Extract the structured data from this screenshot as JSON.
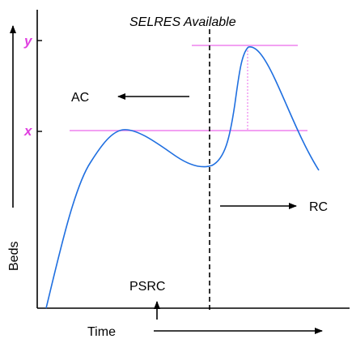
{
  "diagram": {
    "annotation": "SELRES Available",
    "left_arrow_label": "AC",
    "right_arrow_label": "RC",
    "bottom_marker_label": "PSRC",
    "y_axis_label": "Beds",
    "x_axis_label": "Time",
    "y_marker_upper": "y",
    "y_marker_lower": "x"
  },
  "colors": {
    "curve": "#1f6fe0",
    "guide": "#ee82ee",
    "marker_text": "#e040e0",
    "ink": "#000000"
  }
}
